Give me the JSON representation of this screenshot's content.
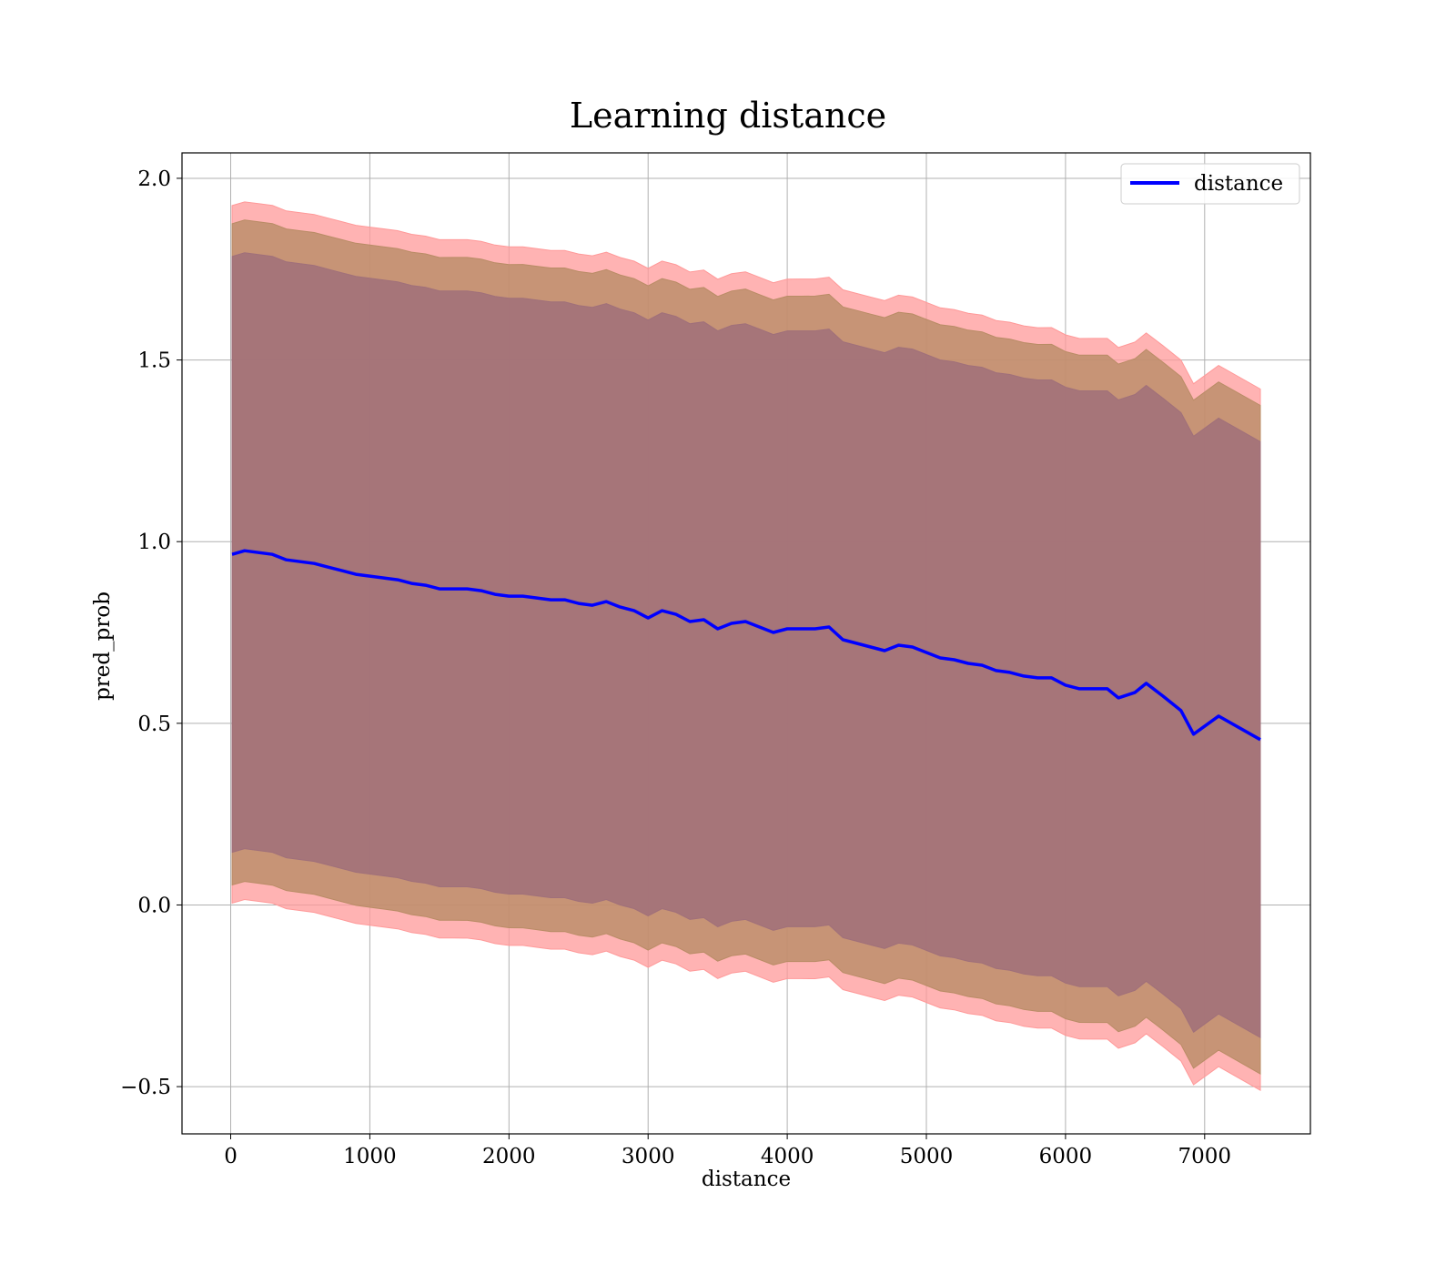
{
  "chart_data": {
    "type": "line",
    "title": "Learning distance",
    "xlabel": "distance",
    "ylabel": "pred_prob",
    "xlim": [
      -350,
      7760
    ],
    "ylim": [
      -0.63,
      2.07
    ],
    "xticks": [
      0,
      1000,
      2000,
      3000,
      4000,
      5000,
      6000,
      7000
    ],
    "yticks": [
      -0.5,
      0.0,
      0.5,
      1.0,
      1.5,
      2.0
    ],
    "xtick_labels": [
      "0",
      "1000",
      "2000",
      "3000",
      "4000",
      "5000",
      "6000",
      "7000"
    ],
    "ytick_labels": [
      "−0.5",
      "0.0",
      "0.5",
      "1.0",
      "1.5",
      "2.0"
    ],
    "grid": true,
    "legend": {
      "position": "top-right",
      "entries": [
        "distance"
      ]
    },
    "colors": {
      "line": "#0000ff",
      "outer_band": "#ff9999",
      "middle_band": "#b98c66",
      "inner_band": "#a0707a"
    },
    "series": [
      {
        "name": "distance",
        "x": [
          10,
          100,
          200,
          300,
          400,
          500,
          600,
          700,
          800,
          900,
          1000,
          1100,
          1200,
          1300,
          1400,
          1500,
          1600,
          1700,
          1800,
          1900,
          2000,
          2100,
          2200,
          2300,
          2400,
          2500,
          2600,
          2700,
          2800,
          2900,
          3000,
          3100,
          3200,
          3300,
          3400,
          3500,
          3600,
          3700,
          3800,
          3900,
          4000,
          4100,
          4200,
          4300,
          4400,
          4500,
          4600,
          4700,
          4800,
          4900,
          5000,
          5100,
          5200,
          5300,
          5400,
          5500,
          5600,
          5700,
          5800,
          5900,
          6000,
          6100,
          6200,
          6300,
          6380,
          6500,
          6580,
          6700,
          6830,
          6920,
          7100,
          7400
        ],
        "y": [
          0.965,
          0.975,
          0.97,
          0.965,
          0.95,
          0.945,
          0.94,
          0.93,
          0.92,
          0.91,
          0.905,
          0.9,
          0.895,
          0.885,
          0.88,
          0.87,
          0.87,
          0.87,
          0.865,
          0.855,
          0.85,
          0.85,
          0.845,
          0.84,
          0.84,
          0.83,
          0.825,
          0.835,
          0.82,
          0.81,
          0.79,
          0.81,
          0.8,
          0.78,
          0.785,
          0.76,
          0.775,
          0.78,
          0.765,
          0.75,
          0.76,
          0.76,
          0.76,
          0.765,
          0.73,
          0.72,
          0.71,
          0.7,
          0.715,
          0.71,
          0.695,
          0.68,
          0.675,
          0.665,
          0.66,
          0.645,
          0.64,
          0.63,
          0.625,
          0.625,
          0.605,
          0.595,
          0.595,
          0.595,
          0.57,
          0.585,
          0.61,
          0.575,
          0.535,
          0.47,
          0.52,
          0.455
        ]
      }
    ],
    "bands": [
      {
        "offset_start": 0.96,
        "offset_end": 0.965
      },
      {
        "offset_start": 0.91,
        "offset_end": 0.92
      },
      {
        "offset_start": 0.82,
        "offset_end": 0.82
      }
    ]
  }
}
